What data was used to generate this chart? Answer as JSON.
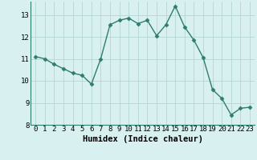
{
  "x": [
    0,
    1,
    2,
    3,
    4,
    5,
    6,
    7,
    8,
    9,
    10,
    11,
    12,
    13,
    14,
    15,
    16,
    17,
    18,
    19,
    20,
    21,
    22,
    23
  ],
  "y": [
    11.1,
    11.0,
    10.75,
    10.55,
    10.35,
    10.25,
    9.85,
    11.0,
    12.55,
    12.75,
    12.85,
    12.6,
    12.75,
    12.05,
    12.55,
    13.4,
    12.45,
    11.85,
    11.05,
    9.6,
    9.2,
    8.45,
    8.75,
    8.8
  ],
  "line_color": "#2e7d6e",
  "marker": "D",
  "marker_size": 2.5,
  "bg_color": "#d9f0f0",
  "grid_color": "#b5d5d5",
  "xlabel": "Humidex (Indice chaleur)",
  "ylim": [
    8,
    13.6
  ],
  "xlim": [
    -0.5,
    23.5
  ],
  "yticks": [
    8,
    9,
    10,
    11,
    12,
    13
  ],
  "xticks": [
    0,
    1,
    2,
    3,
    4,
    5,
    6,
    7,
    8,
    9,
    10,
    11,
    12,
    13,
    14,
    15,
    16,
    17,
    18,
    19,
    20,
    21,
    22,
    23
  ],
  "xlabel_fontsize": 7.5,
  "tick_fontsize": 6.5,
  "line_width": 1.0
}
